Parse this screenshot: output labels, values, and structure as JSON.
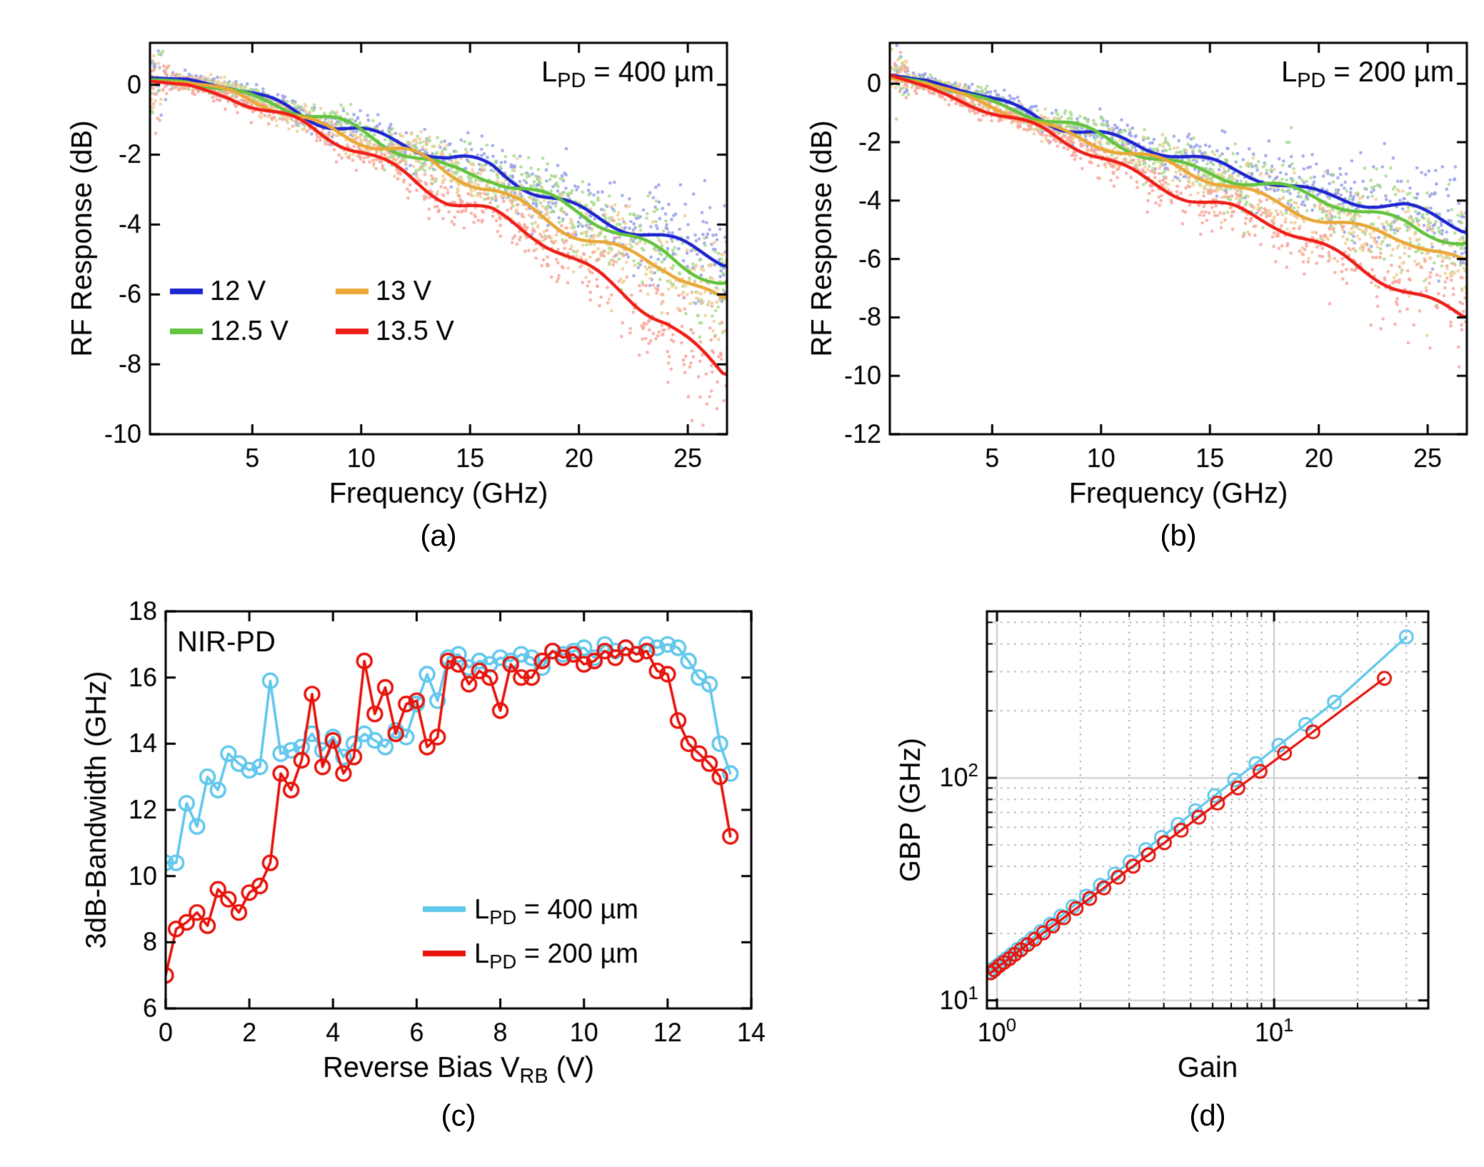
{
  "figure": {
    "background": "#ffffff",
    "captions": {
      "a": "(a)",
      "b": "(b)",
      "c": "(c)",
      "d": "(d)"
    }
  },
  "chart_data": [
    {
      "id": "a",
      "type": "line",
      "panel_label": "(a)",
      "annotation": {
        "text": "L_PD = 400 µm",
        "parts": [
          {
            "t": "L"
          },
          {
            "t": "PD",
            "sub": true
          },
          {
            "t": " = 400 µm"
          }
        ],
        "position": "top-right"
      },
      "xlabel": "Frequency (GHz)",
      "ylabel": "RF Response (dB)",
      "xlabel_parts": [
        {
          "t": "Frequency (GHz)"
        }
      ],
      "ylabel_parts": [
        {
          "t": "RF Response (dB)"
        }
      ],
      "xscale": "linear",
      "yscale": "linear",
      "xlim": [
        0.3,
        26.8
      ],
      "ylim": [
        -10,
        1.2
      ],
      "xticks": [
        5,
        10,
        15,
        20,
        25
      ],
      "yticks": [
        0,
        -2,
        -4,
        -6,
        -8,
        -10
      ],
      "grid": false,
      "legend": {
        "columns": 2,
        "position": "lower-left",
        "entries": [
          {
            "label": "12 V",
            "color": "#1f27cf",
            "parts": [
              {
                "t": "12 V"
              }
            ]
          },
          {
            "label": "13 V",
            "color": "#eaa838",
            "parts": [
              {
                "t": "13 V"
              }
            ]
          },
          {
            "label": "12.5 V",
            "color": "#63c43f",
            "parts": [
              {
                "t": "12.5 V"
              }
            ]
          },
          {
            "label": "13.5 V",
            "color": "#ee2019",
            "parts": [
              {
                "t": "13.5 V"
              }
            ]
          }
        ]
      },
      "series": [
        {
          "name": "12 V",
          "color": "#1f27cf",
          "scatter_color": "#9ba3e9",
          "scatter": true,
          "smooth": true,
          "x": [
            0.3,
            2,
            4,
            6,
            8,
            10,
            12,
            14,
            16,
            18,
            20,
            22,
            24,
            26.6
          ],
          "y": [
            0.2,
            0.15,
            -0.1,
            -0.5,
            -0.9,
            -1.3,
            -1.7,
            -2.2,
            -2.4,
            -3.0,
            -3.5,
            -4.0,
            -4.5,
            -5.1
          ]
        },
        {
          "name": "12.5 V",
          "color": "#63c43f",
          "scatter_color": "#abdd90",
          "scatter": true,
          "smooth": true,
          "x": [
            0.3,
            2,
            4,
            6,
            8,
            10,
            12,
            14,
            16,
            18,
            20,
            22,
            24,
            26.6
          ],
          "y": [
            0.15,
            0.1,
            -0.15,
            -0.55,
            -1.0,
            -1.4,
            -1.85,
            -2.35,
            -2.6,
            -3.2,
            -3.7,
            -4.3,
            -4.8,
            -5.6
          ]
        },
        {
          "name": "13 V",
          "color": "#eaa838",
          "scatter_color": "#efcf9a",
          "scatter": true,
          "smooth": true,
          "x": [
            0.3,
            2,
            4,
            6,
            8,
            10,
            12,
            14,
            16,
            18,
            20,
            22,
            24,
            26.6
          ],
          "y": [
            0.1,
            0.05,
            -0.2,
            -0.6,
            -1.1,
            -1.55,
            -2.0,
            -2.6,
            -3.0,
            -3.6,
            -4.2,
            -4.8,
            -5.3,
            -6.3
          ]
        },
        {
          "name": "13.5 V",
          "color": "#ee2019",
          "scatter_color": "#f7a89f",
          "scatter": true,
          "smooth": true,
          "x": [
            0.3,
            2,
            4,
            6,
            8,
            10,
            12,
            14,
            16,
            18,
            20,
            22,
            24,
            26.6
          ],
          "y": [
            0.1,
            0.0,
            -0.35,
            -0.9,
            -1.4,
            -1.9,
            -2.5,
            -3.2,
            -3.7,
            -4.4,
            -5.2,
            -5.9,
            -6.7,
            -8.2
          ]
        }
      ]
    },
    {
      "id": "b",
      "type": "line",
      "panel_label": "(b)",
      "annotation": {
        "text": "L_PD = 200 µm",
        "parts": [
          {
            "t": "L"
          },
          {
            "t": "PD",
            "sub": true
          },
          {
            "t": " = 200 µm"
          }
        ],
        "position": "top-right"
      },
      "xlabel": "Frequency (GHz)",
      "ylabel": "RF Response (dB)",
      "xlabel_parts": [
        {
          "t": "Frequency (GHz)"
        }
      ],
      "ylabel_parts": [
        {
          "t": "RF Response (dB)"
        }
      ],
      "xscale": "linear",
      "yscale": "linear",
      "xlim": [
        0.3,
        26.8
      ],
      "ylim": [
        -12,
        1.4
      ],
      "xticks": [
        5,
        10,
        15,
        20,
        25
      ],
      "yticks": [
        0,
        -2,
        -4,
        -6,
        -8,
        -10,
        -12
      ],
      "grid": false,
      "series": [
        {
          "name": "12 V",
          "color": "#1f27cf",
          "scatter_color": "#9ba3e9",
          "scatter": true,
          "smooth": true,
          "x": [
            0.3,
            2,
            4,
            6,
            8,
            10,
            12,
            14,
            16,
            18,
            20,
            22,
            24,
            26.6
          ],
          "y": [
            0.3,
            0.1,
            -0.3,
            -0.8,
            -1.3,
            -1.7,
            -2.2,
            -2.6,
            -3.0,
            -3.3,
            -3.7,
            -4.0,
            -4.3,
            -5.0
          ]
        },
        {
          "name": "12.5 V",
          "color": "#63c43f",
          "scatter_color": "#abdd90",
          "scatter": true,
          "smooth": true,
          "x": [
            0.3,
            2,
            4,
            6,
            8,
            10,
            12,
            14,
            16,
            18,
            20,
            22,
            24,
            26.6
          ],
          "y": [
            0.25,
            0.05,
            -0.4,
            -0.9,
            -1.4,
            -1.85,
            -2.35,
            -2.8,
            -3.2,
            -3.6,
            -4.0,
            -4.4,
            -4.7,
            -5.4
          ]
        },
        {
          "name": "13 V",
          "color": "#eaa838",
          "scatter_color": "#efcf9a",
          "scatter": true,
          "smooth": true,
          "x": [
            0.3,
            2,
            4,
            6,
            8,
            10,
            12,
            14,
            16,
            18,
            20,
            22,
            24,
            26.6
          ],
          "y": [
            0.2,
            0.0,
            -0.5,
            -1.0,
            -1.55,
            -2.05,
            -2.6,
            -3.1,
            -3.5,
            -4.0,
            -4.5,
            -5.0,
            -5.4,
            -6.2
          ]
        },
        {
          "name": "13.5 V",
          "color": "#ee2019",
          "scatter_color": "#f7a89f",
          "scatter": true,
          "smooth": true,
          "x": [
            0.3,
            2,
            4,
            6,
            8,
            10,
            12,
            14,
            16,
            18,
            20,
            22,
            24,
            26.6
          ],
          "y": [
            0.3,
            -0.1,
            -0.7,
            -1.3,
            -1.9,
            -2.5,
            -3.2,
            -3.8,
            -4.3,
            -4.9,
            -5.6,
            -6.3,
            -7.0,
            -7.9
          ]
        }
      ]
    },
    {
      "id": "c",
      "type": "line",
      "panel_label": "(c)",
      "annotation": {
        "text": "NIR-PD",
        "parts": [
          {
            "t": "NIR-PD"
          }
        ],
        "position": "top-left"
      },
      "xlabel": "Reverse Bias V_RB (V)",
      "ylabel": "3dB-Bandwidth (GHz)",
      "xlabel_parts": [
        {
          "t": "Reverse Bias V"
        },
        {
          "t": "RB",
          "sub": true
        },
        {
          "t": " (V)"
        }
      ],
      "ylabel_parts": [
        {
          "t": "3dB-Bandwidth (GHz)"
        }
      ],
      "xscale": "linear",
      "yscale": "linear",
      "xlim": [
        0,
        14
      ],
      "ylim": [
        6,
        18
      ],
      "xticks": [
        0,
        2,
        4,
        6,
        8,
        10,
        12,
        14
      ],
      "yticks": [
        6,
        8,
        10,
        12,
        14,
        16,
        18
      ],
      "grid": false,
      "legend": {
        "columns": 1,
        "position": "lower-right",
        "entries": [
          {
            "label": "L_PD = 400 µm",
            "color": "#62c8ec",
            "parts": [
              {
                "t": "L"
              },
              {
                "t": "PD",
                "sub": true
              },
              {
                "t": " = 400 µm"
              }
            ]
          },
          {
            "label": "L_PD = 200 µm",
            "color": "#e8150d",
            "parts": [
              {
                "t": "L"
              },
              {
                "t": "PD",
                "sub": true
              },
              {
                "t": " = 200 µm"
              }
            ]
          }
        ]
      },
      "series": [
        {
          "name": "L_PD = 400 µm",
          "color": "#62c8ec",
          "marker": "circle",
          "x": [
            0,
            0.25,
            0.5,
            0.75,
            1,
            1.25,
            1.5,
            1.75,
            2,
            2.25,
            2.5,
            2.75,
            3,
            3.25,
            3.5,
            3.75,
            4,
            4.25,
            4.5,
            4.75,
            5,
            5.25,
            5.5,
            5.75,
            6,
            6.25,
            6.5,
            6.75,
            7,
            7.25,
            7.5,
            7.75,
            8,
            8.25,
            8.5,
            8.75,
            9,
            9.25,
            9.5,
            9.75,
            10,
            10.25,
            10.5,
            10.75,
            11,
            11.25,
            11.5,
            11.75,
            12,
            12.25,
            12.5,
            12.75,
            13,
            13.25,
            13.5
          ],
          "y": [
            10.4,
            10.4,
            12.2,
            11.5,
            13.0,
            12.6,
            13.7,
            13.4,
            13.2,
            13.3,
            15.9,
            13.7,
            13.8,
            13.9,
            14.3,
            13.8,
            14.2,
            13.6,
            14.0,
            14.3,
            14.1,
            13.9,
            14.4,
            14.2,
            15.2,
            16.1,
            15.3,
            16.6,
            16.7,
            16.3,
            16.5,
            16.4,
            16.6,
            16.5,
            16.7,
            16.6,
            16.3,
            16.8,
            16.7,
            16.8,
            16.9,
            16.6,
            17.0,
            16.8,
            16.9,
            16.7,
            17.0,
            16.9,
            17.0,
            16.9,
            16.5,
            16.0,
            15.8,
            14.0,
            13.1
          ]
        },
        {
          "name": "L_PD = 200 µm",
          "color": "#e8150d",
          "marker": "circle",
          "x": [
            0,
            0.25,
            0.5,
            0.75,
            1,
            1.25,
            1.5,
            1.75,
            2,
            2.25,
            2.5,
            2.75,
            3,
            3.25,
            3.5,
            3.75,
            4,
            4.25,
            4.5,
            4.75,
            5,
            5.25,
            5.5,
            5.75,
            6,
            6.25,
            6.5,
            6.75,
            7,
            7.25,
            7.5,
            7.75,
            8,
            8.25,
            8.5,
            8.75,
            9,
            9.25,
            9.5,
            9.75,
            10,
            10.25,
            10.5,
            10.75,
            11,
            11.25,
            11.5,
            11.75,
            12,
            12.25,
            12.5,
            12.75,
            13,
            13.25,
            13.5
          ],
          "y": [
            7.0,
            8.4,
            8.6,
            8.9,
            8.5,
            9.6,
            9.3,
            8.9,
            9.5,
            9.7,
            10.4,
            13.1,
            12.6,
            13.5,
            15.5,
            13.3,
            14.1,
            13.1,
            13.6,
            16.5,
            14.9,
            15.7,
            14.3,
            15.2,
            15.3,
            13.9,
            14.2,
            16.5,
            16.4,
            15.8,
            16.2,
            16.0,
            15.0,
            16.4,
            16.0,
            16.0,
            16.5,
            16.8,
            16.6,
            16.7,
            16.4,
            16.5,
            16.8,
            16.6,
            16.9,
            16.7,
            16.8,
            16.2,
            16.1,
            14.7,
            14.0,
            13.7,
            13.4,
            13.0,
            11.2
          ]
        }
      ]
    },
    {
      "id": "d",
      "type": "line",
      "panel_label": "(d)",
      "xlabel": "Gain",
      "ylabel": "GBP (GHz)",
      "xlabel_parts": [
        {
          "t": "Gain"
        }
      ],
      "ylabel_parts": [
        {
          "t": "GBP (GHz)"
        }
      ],
      "xscale": "log",
      "yscale": "log",
      "xlim": [
        0.92,
        36
      ],
      "ylim": [
        9.2,
        560
      ],
      "xticks": [
        1,
        10
      ],
      "xtick_labels": [
        "10^0",
        "10^1"
      ],
      "yticks": [
        10,
        100
      ],
      "ytick_labels": [
        "10^1",
        "10^2"
      ],
      "grid": true,
      "series": [
        {
          "name": "L_PD = 400 µm",
          "color": "#62c8ec",
          "marker": "circle",
          "x": [
            0.93,
            0.96,
            1.0,
            1.04,
            1.08,
            1.13,
            1.19,
            1.26,
            1.34,
            1.44,
            1.56,
            1.7,
            1.88,
            2.1,
            2.36,
            2.66,
            3.02,
            3.44,
            3.92,
            4.5,
            5.2,
            6.1,
            7.2,
            8.6,
            10.4,
            13.0,
            16.5,
            30.0
          ],
          "y": [
            13.4,
            13.8,
            14.3,
            14.9,
            15.4,
            16.1,
            17.0,
            17.9,
            19.0,
            20.4,
            22.0,
            23.9,
            26.4,
            29.4,
            32.9,
            37.0,
            41.9,
            47.6,
            54.0,
            61.8,
            71.2,
            83.2,
            97.9,
            116,
            140,
            174,
            219,
            430
          ]
        },
        {
          "name": "L_PD = 200 µm",
          "color": "#e8150d",
          "marker": "circle",
          "x": [
            0.95,
            0.98,
            1.02,
            1.06,
            1.11,
            1.16,
            1.22,
            1.29,
            1.37,
            1.47,
            1.59,
            1.74,
            1.93,
            2.16,
            2.43,
            2.74,
            3.1,
            3.52,
            4.02,
            4.62,
            5.35,
            6.25,
            7.4,
            8.9,
            10.9,
            13.8,
            25.0
          ],
          "y": [
            13.3,
            13.7,
            14.3,
            14.8,
            15.4,
            16.1,
            16.9,
            17.8,
            18.8,
            20.1,
            21.6,
            23.5,
            25.9,
            28.7,
            32.0,
            35.8,
            40.1,
            45.1,
            51.1,
            58.1,
            66.6,
            77.0,
            90.1,
            107,
            129,
            161,
            280
          ]
        }
      ]
    }
  ]
}
